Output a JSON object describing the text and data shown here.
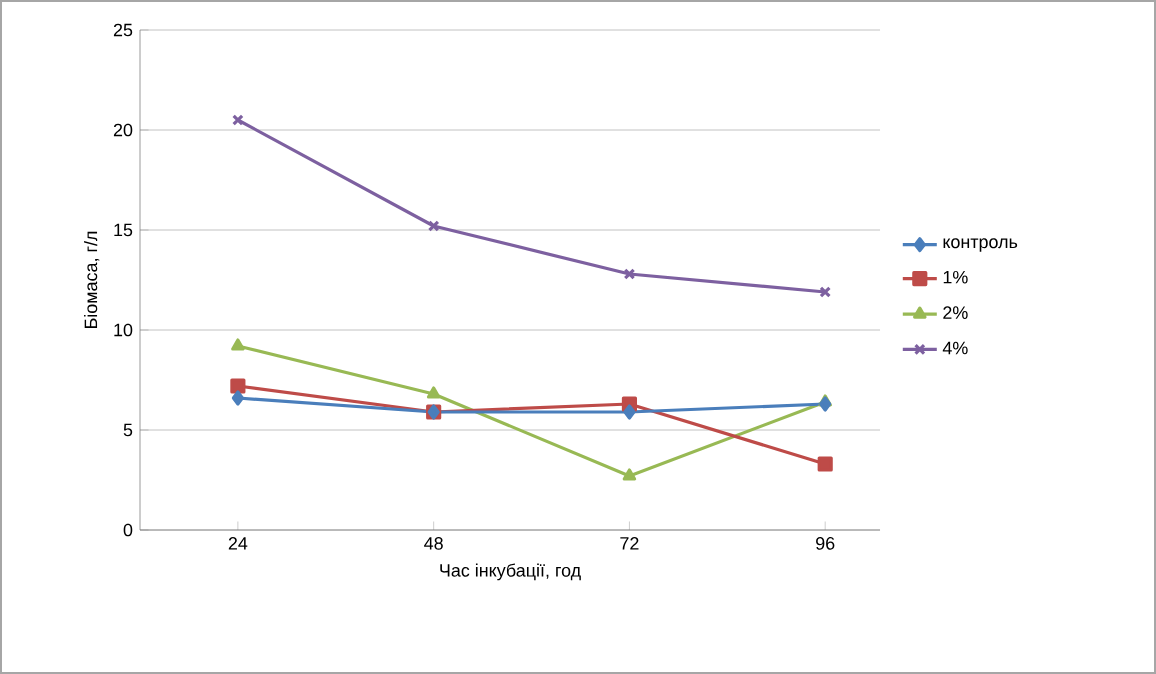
{
  "chart_data": {
    "type": "line",
    "xlabel": "Час інкубації, год",
    "ylabel": "Біомаса, г/л",
    "categories": [
      "24",
      "48",
      "72",
      "96"
    ],
    "series": [
      {
        "name": "контроль",
        "color": "#4a7ebb",
        "marker": "diamond",
        "values": [
          6.6,
          5.9,
          5.9,
          6.3
        ]
      },
      {
        "name": "1%",
        "color": "#be4b48",
        "marker": "square",
        "values": [
          7.2,
          5.9,
          6.3,
          3.3
        ]
      },
      {
        "name": "2%",
        "color": "#98b954",
        "marker": "triangle",
        "values": [
          9.2,
          6.8,
          2.7,
          6.4
        ]
      },
      {
        "name": "4%",
        "color": "#7d60a0",
        "marker": "cross",
        "values": [
          20.5,
          15.2,
          12.8,
          11.9
        ]
      }
    ],
    "ylim": [
      0,
      25
    ],
    "yticks": [
      0,
      5,
      10,
      15,
      20,
      25
    ],
    "grid": "y",
    "legend": "right"
  }
}
